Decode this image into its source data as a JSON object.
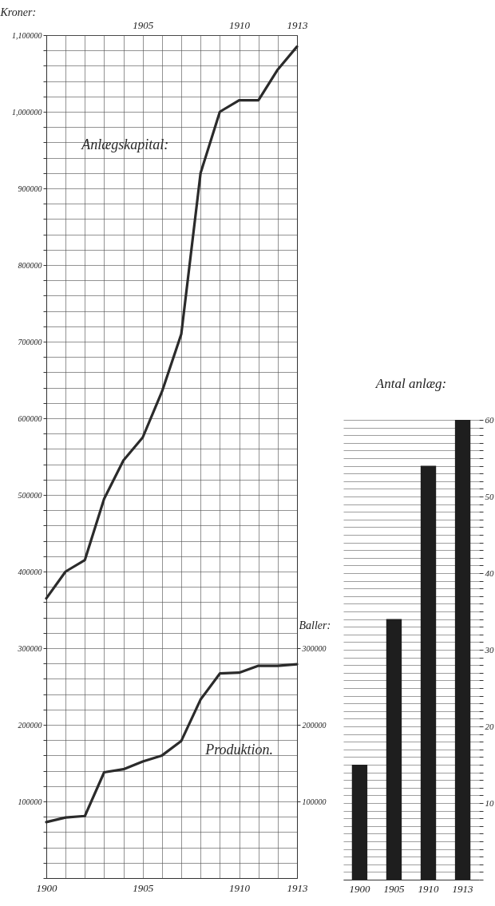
{
  "chart_data": [
    {
      "type": "line",
      "ylabel": "Kroner:",
      "y2label": "Baller:",
      "x": [
        1900,
        1901,
        1902,
        1903,
        1904,
        1905,
        1906,
        1907,
        1908,
        1909,
        1910,
        1911,
        1912,
        1913
      ],
      "series": [
        {
          "name": "Anlægskapital:",
          "color": "#2b2b2b",
          "values": [
            365000,
            400000,
            415000,
            495000,
            545000,
            575000,
            635000,
            710000,
            920000,
            1000000,
            1015000,
            1015000,
            1055000,
            1085000
          ]
        },
        {
          "name": "Produktion.",
          "color": "#2b2b2b",
          "axis": "y2",
          "values": [
            73000,
            79000,
            81000,
            138000,
            142000,
            152000,
            160000,
            179000,
            233000,
            267000,
            268000,
            277000,
            277000,
            279000
          ]
        }
      ],
      "xlim": [
        1900,
        1913
      ],
      "xticks": [
        1900,
        {
          "value": 1901,
          "label": null
        },
        {
          "value": 1902,
          "label": null
        },
        {
          "value": 1903,
          "label": null
        },
        {
          "value": 1904,
          "label": null
        },
        1905,
        {
          "value": 1906,
          "label": null
        },
        {
          "value": 1907,
          "label": null
        },
        {
          "value": 1908,
          "label": null
        },
        {
          "value": 1909,
          "label": null
        },
        1910,
        {
          "value": 1911,
          "label": null
        },
        {
          "value": 1912,
          "label": null
        },
        1913
      ],
      "x2lim": [
        1900,
        1913
      ],
      "x2ticks": [
        1905,
        1910,
        1913
      ],
      "ylim": [
        0,
        1100000
      ],
      "yticks": [
        {
          "value": 0,
          "label": null
        },
        {
          "value": 20000,
          "label": null
        },
        {
          "value": 40000,
          "label": null
        },
        {
          "value": 60000,
          "label": null
        },
        {
          "value": 80000,
          "label": null
        },
        100000,
        {
          "value": 120000,
          "label": null
        },
        {
          "value": 140000,
          "label": null
        },
        {
          "value": 160000,
          "label": null
        },
        {
          "value": 180000,
          "label": null
        },
        200000,
        {
          "value": 220000,
          "label": null
        },
        {
          "value": 240000,
          "label": null
        },
        {
          "value": 260000,
          "label": null
        },
        {
          "value": 280000,
          "label": null
        },
        300000,
        {
          "value": 320000,
          "label": null
        },
        {
          "value": 340000,
          "label": null
        },
        {
          "value": 360000,
          "label": null
        },
        {
          "value": 380000,
          "label": null
        },
        400000,
        {
          "value": 420000,
          "label": null
        },
        {
          "value": 440000,
          "label": null
        },
        {
          "value": 460000,
          "label": null
        },
        {
          "value": 480000,
          "label": null
        },
        500000,
        {
          "value": 520000,
          "label": null
        },
        {
          "value": 540000,
          "label": null
        },
        {
          "value": 560000,
          "label": null
        },
        {
          "value": 580000,
          "label": null
        },
        600000,
        {
          "value": 620000,
          "label": null
        },
        {
          "value": 640000,
          "label": null
        },
        {
          "value": 660000,
          "label": null
        },
        {
          "value": 680000,
          "label": null
        },
        700000,
        {
          "value": 720000,
          "label": null
        },
        {
          "value": 740000,
          "label": null
        },
        {
          "value": 760000,
          "label": null
        },
        {
          "value": 780000,
          "label": null
        },
        800000,
        {
          "value": 820000,
          "label": null
        },
        {
          "value": 840000,
          "label": null
        },
        {
          "value": 860000,
          "label": null
        },
        {
          "value": 880000,
          "label": null
        },
        900000,
        {
          "value": 920000,
          "label": null
        },
        {
          "value": 940000,
          "label": null
        },
        {
          "value": 960000,
          "label": null
        },
        {
          "value": 980000,
          "label": null
        },
        {
          "value": 1000000,
          "label": "1,000000"
        },
        {
          "value": 1020000,
          "label": null
        },
        {
          "value": 1040000,
          "label": null
        },
        {
          "value": 1060000,
          "label": null
        },
        {
          "value": 1080000,
          "label": null
        },
        {
          "value": 1100000,
          "label": "1,100000"
        }
      ],
      "y2lim": [
        0,
        1100000
      ],
      "y2ticks": [
        100000,
        200000,
        300000
      ],
      "grid": true
    },
    {
      "type": "bar",
      "title": "Antal anlæg:",
      "categories": [
        "1900",
        "1905",
        "1910",
        "1913"
      ],
      "values": [
        15,
        34,
        54,
        60
      ],
      "color": "#1e1e1e",
      "ylim": [
        0,
        60
      ],
      "yticks": [
        {
          "value": 0,
          "label": null
        },
        {
          "value": 1,
          "label": null
        },
        {
          "value": 2,
          "label": null
        },
        {
          "value": 3,
          "label": null
        },
        {
          "value": 4,
          "label": null
        },
        {
          "value": 5,
          "label": null
        },
        {
          "value": 6,
          "label": null
        },
        {
          "value": 7,
          "label": null
        },
        {
          "value": 8,
          "label": null
        },
        {
          "value": 9,
          "label": null
        },
        10,
        {
          "value": 11,
          "label": null
        },
        {
          "value": 12,
          "label": null
        },
        {
          "value": 13,
          "label": null
        },
        {
          "value": 14,
          "label": null
        },
        {
          "value": 15,
          "label": null
        },
        {
          "value": 16,
          "label": null
        },
        {
          "value": 17,
          "label": null
        },
        {
          "value": 18,
          "label": null
        },
        {
          "value": 19,
          "label": null
        },
        20,
        {
          "value": 21,
          "label": null
        },
        {
          "value": 22,
          "label": null
        },
        {
          "value": 23,
          "label": null
        },
        {
          "value": 24,
          "label": null
        },
        {
          "value": 25,
          "label": null
        },
        {
          "value": 26,
          "label": null
        },
        {
          "value": 27,
          "label": null
        },
        {
          "value": 28,
          "label": null
        },
        {
          "value": 29,
          "label": null
        },
        30,
        {
          "value": 31,
          "label": null
        },
        {
          "value": 32,
          "label": null
        },
        {
          "value": 33,
          "label": null
        },
        {
          "value": 34,
          "label": null
        },
        {
          "value": 35,
          "label": null
        },
        {
          "value": 36,
          "label": null
        },
        {
          "value": 37,
          "label": null
        },
        {
          "value": 38,
          "label": null
        },
        {
          "value": 39,
          "label": null
        },
        40,
        {
          "value": 41,
          "label": null
        },
        {
          "value": 42,
          "label": null
        },
        {
          "value": 43,
          "label": null
        },
        {
          "value": 44,
          "label": null
        },
        {
          "value": 45,
          "label": null
        },
        {
          "value": 46,
          "label": null
        },
        {
          "value": 47,
          "label": null
        },
        {
          "value": 48,
          "label": null
        },
        {
          "value": 49,
          "label": null
        },
        50,
        {
          "value": 51,
          "label": null
        },
        {
          "value": 52,
          "label": null
        },
        {
          "value": 53,
          "label": null
        },
        {
          "value": 54,
          "label": null
        },
        {
          "value": 55,
          "label": null
        },
        {
          "value": 56,
          "label": null
        },
        {
          "value": 57,
          "label": null
        },
        {
          "value": 58,
          "label": null
        },
        {
          "value": 59,
          "label": null
        },
        60
      ],
      "grid": "y"
    }
  ]
}
